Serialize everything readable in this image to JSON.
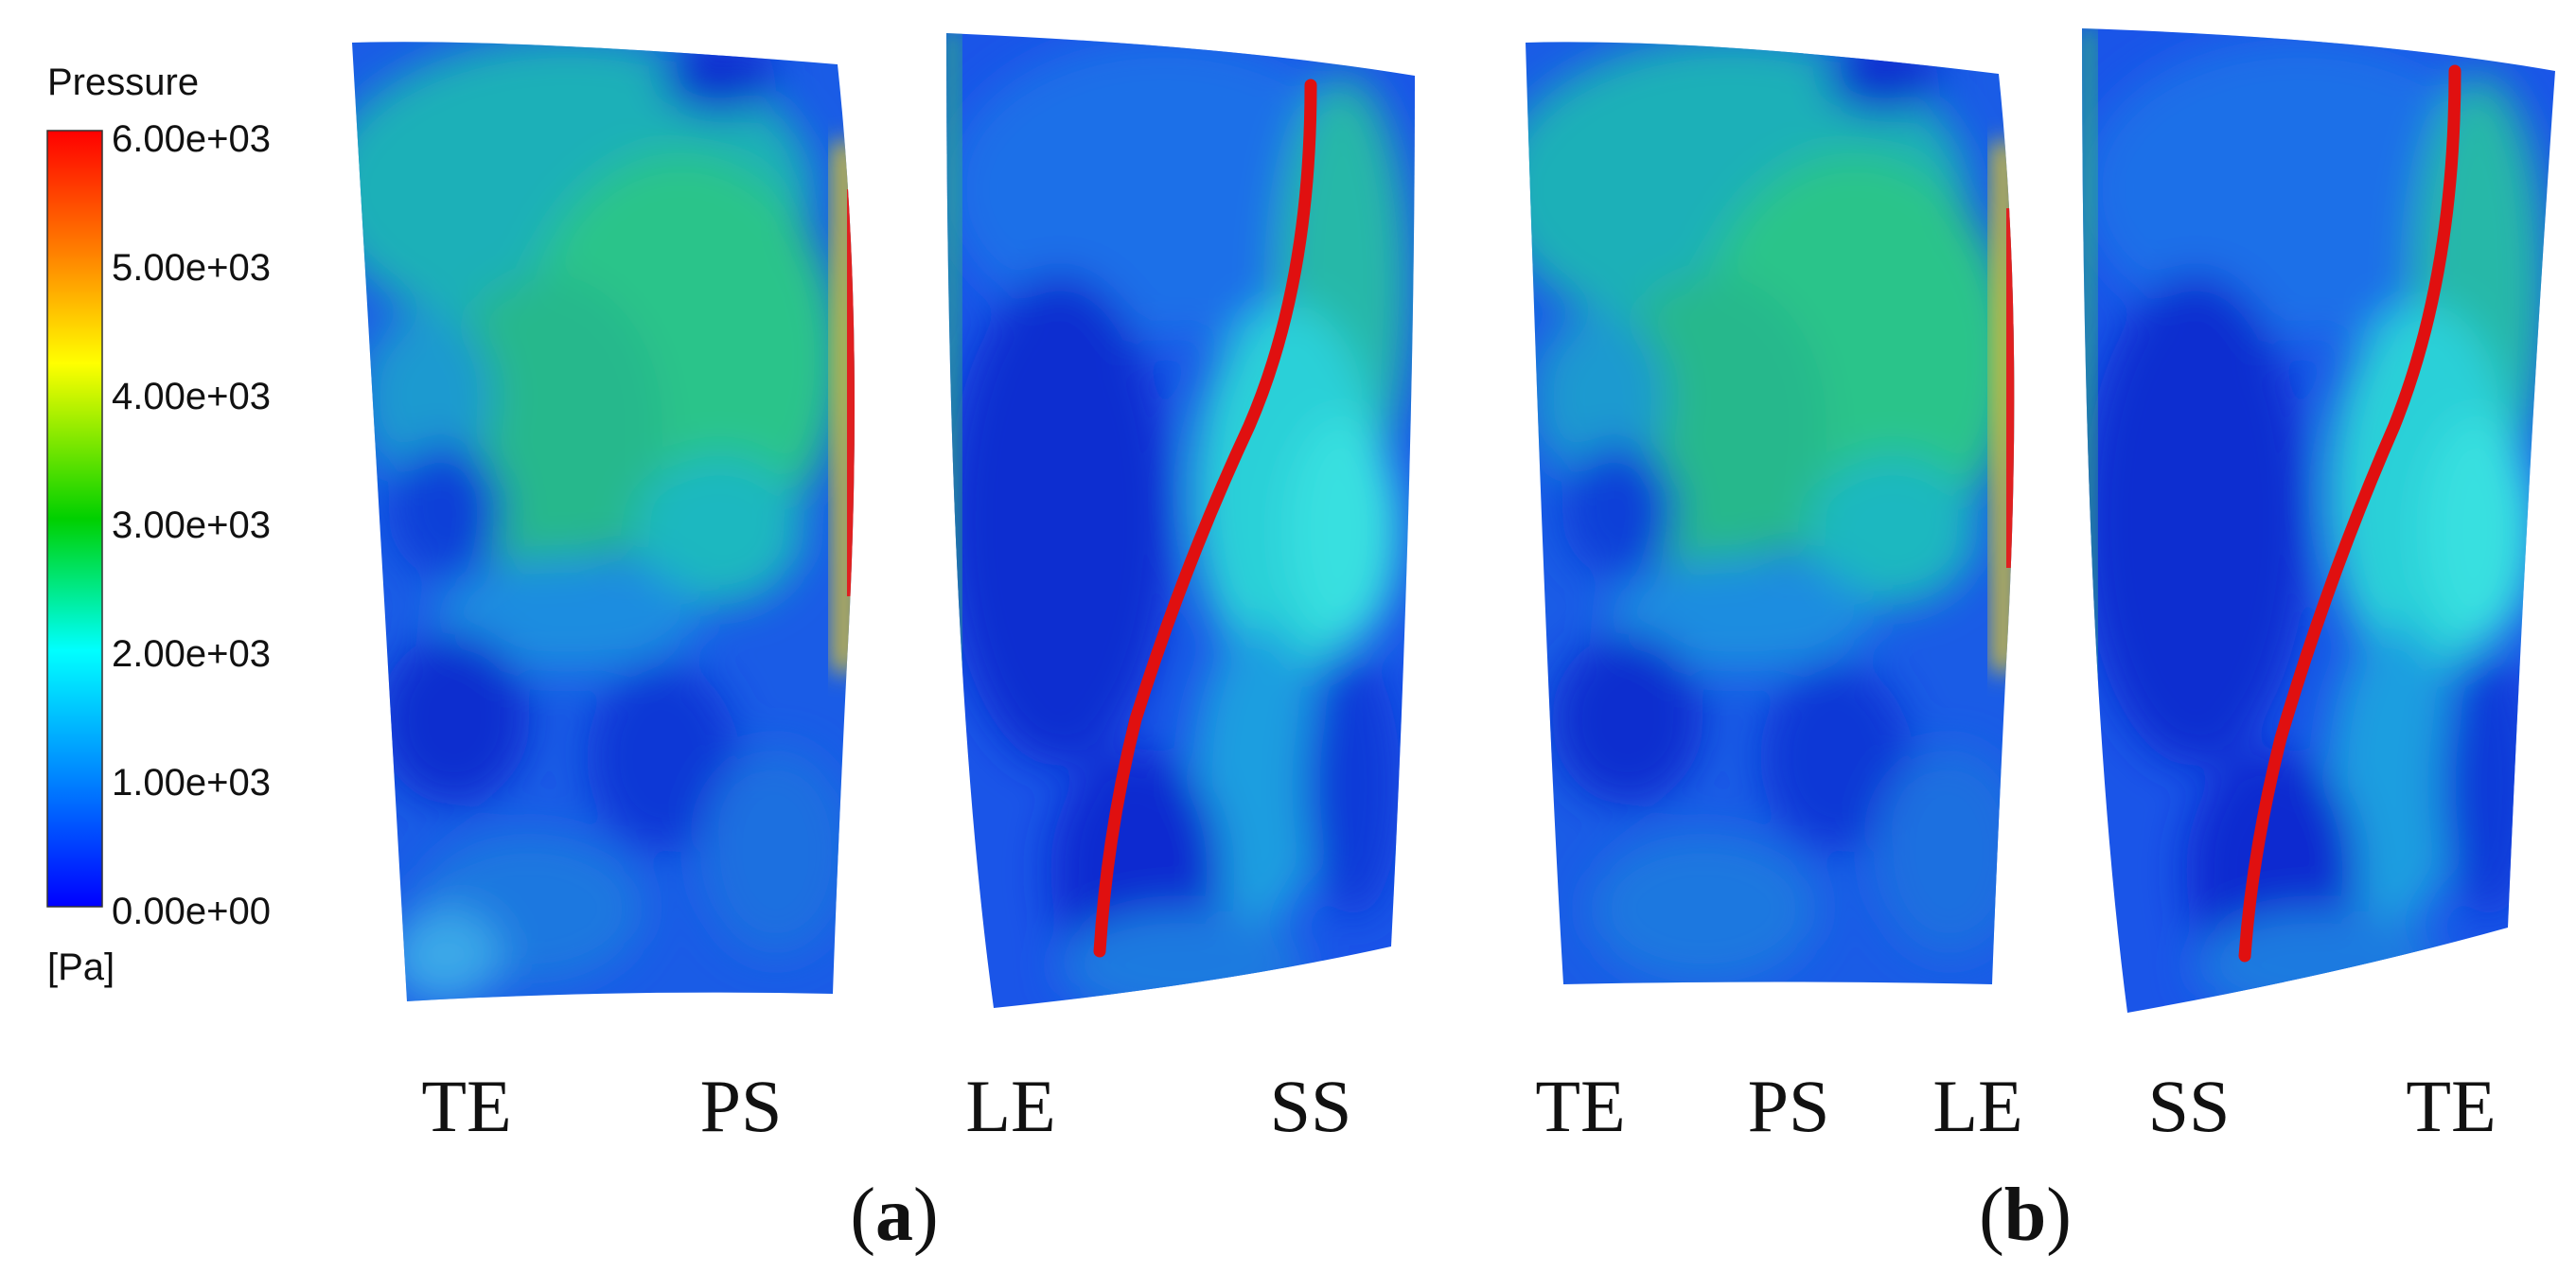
{
  "legend": {
    "title": "Pressure",
    "unit": "[Pa]",
    "ticks": [
      "6.00e+03",
      "5.00e+03",
      "4.00e+03",
      "3.00e+03",
      "2.00e+03",
      "1.00e+03",
      "0.00e+00"
    ],
    "colormap": [
      "#ff0000",
      "#ff8000",
      "#ffff00",
      "#00d000",
      "#00ffff",
      "#0080ff",
      "#0000ff"
    ]
  },
  "panels": [
    {
      "id": "a",
      "label": "a",
      "region_labels": [
        "TE",
        "PS",
        "LE",
        "SS"
      ]
    },
    {
      "id": "b",
      "label": "b",
      "region_labels": [
        "TE",
        "PS",
        "LE",
        "SS",
        "TE"
      ]
    }
  ],
  "colors": {
    "trajectory": "#e01010",
    "background": "#ffffff"
  }
}
